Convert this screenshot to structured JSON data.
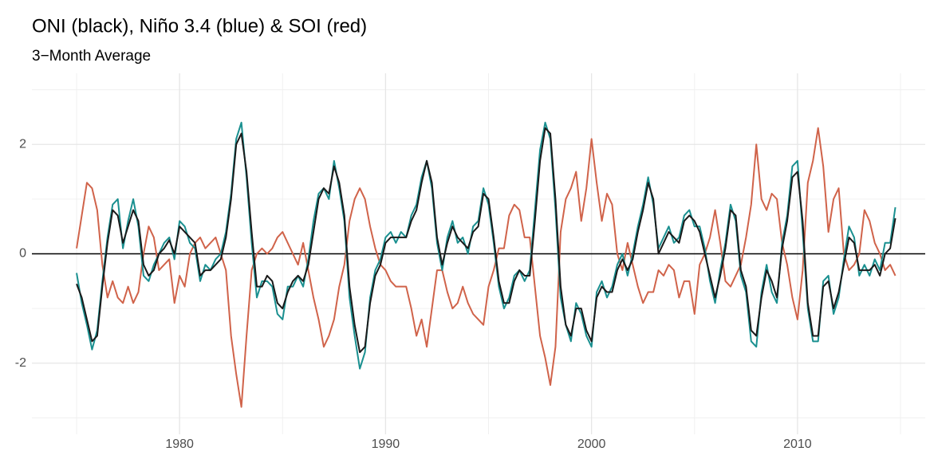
{
  "chart_data": {
    "type": "line",
    "title": "ONI (black), Niño 3.4 (blue) & SOI (red)",
    "subtitle": "3−Month Average",
    "x": [
      1975,
      1975.25,
      1975.5,
      1975.75,
      1976,
      1976.25,
      1976.5,
      1976.75,
      1977,
      1977.25,
      1977.5,
      1977.75,
      1978,
      1978.25,
      1978.5,
      1978.75,
      1979,
      1979.25,
      1979.5,
      1979.75,
      1980,
      1980.25,
      1980.5,
      1980.75,
      1981,
      1981.25,
      1981.5,
      1981.75,
      1982,
      1982.25,
      1982.5,
      1982.75,
      1983,
      1983.25,
      1983.5,
      1983.75,
      1984,
      1984.25,
      1984.5,
      1984.75,
      1985,
      1985.25,
      1985.5,
      1985.75,
      1986,
      1986.25,
      1986.5,
      1986.75,
      1987,
      1987.25,
      1987.5,
      1987.75,
      1988,
      1988.25,
      1988.5,
      1988.75,
      1989,
      1989.25,
      1989.5,
      1989.75,
      1990,
      1990.25,
      1990.5,
      1990.75,
      1991,
      1991.25,
      1991.5,
      1991.75,
      1992,
      1992.25,
      1992.5,
      1992.75,
      1993,
      1993.25,
      1993.5,
      1993.75,
      1994,
      1994.25,
      1994.5,
      1994.75,
      1995,
      1995.25,
      1995.5,
      1995.75,
      1996,
      1996.25,
      1996.5,
      1996.75,
      1997,
      1997.25,
      1997.5,
      1997.75,
      1998,
      1998.25,
      1998.5,
      1998.75,
      1999,
      1999.25,
      1999.5,
      1999.75,
      2000,
      2000.25,
      2000.5,
      2000.75,
      2001,
      2001.25,
      2001.5,
      2001.75,
      2002,
      2002.25,
      2002.5,
      2002.75,
      2003,
      2003.25,
      2003.5,
      2003.75,
      2004,
      2004.25,
      2004.5,
      2004.75,
      2005,
      2005.25,
      2005.5,
      2005.75,
      2006,
      2006.25,
      2006.5,
      2006.75,
      2007,
      2007.25,
      2007.5,
      2007.75,
      2008,
      2008.25,
      2008.5,
      2008.75,
      2009,
      2009.25,
      2009.5,
      2009.75,
      2010,
      2010.25,
      2010.5,
      2010.75,
      2011,
      2011.25,
      2011.5,
      2011.75,
      2012,
      2012.25,
      2012.5,
      2012.75,
      2013,
      2013.25,
      2013.5,
      2013.75,
      2014,
      2014.25,
      2014.5,
      2014.75
    ],
    "series": [
      {
        "name": "SOI",
        "color": "#d0634a",
        "values": [
          0.1,
          0.7,
          1.3,
          1.2,
          0.8,
          -0.2,
          -0.8,
          -0.5,
          -0.8,
          -0.9,
          -0.6,
          -0.9,
          -0.7,
          0.0,
          0.5,
          0.3,
          -0.3,
          -0.2,
          -0.1,
          -0.9,
          -0.4,
          -0.6,
          0.0,
          0.2,
          0.3,
          0.1,
          0.2,
          0.3,
          0.0,
          -0.3,
          -1.5,
          -2.2,
          -2.8,
          -1.5,
          -0.3,
          0.0,
          0.1,
          0.0,
          0.1,
          0.3,
          0.4,
          0.2,
          0.0,
          -0.2,
          0.2,
          -0.3,
          -0.8,
          -1.2,
          -1.7,
          -1.5,
          -1.2,
          -0.6,
          -0.2,
          0.6,
          1.0,
          1.2,
          1.0,
          0.5,
          0.1,
          -0.2,
          -0.3,
          -0.5,
          -0.6,
          -0.6,
          -0.6,
          -1.0,
          -1.5,
          -1.2,
          -1.7,
          -1.0,
          -0.3,
          -0.3,
          -0.7,
          -1.0,
          -0.9,
          -0.6,
          -0.9,
          -1.1,
          -1.2,
          -1.3,
          -0.6,
          -0.3,
          0.1,
          0.1,
          0.7,
          0.9,
          0.8,
          0.3,
          0.3,
          -0.6,
          -1.5,
          -1.9,
          -2.4,
          -1.7,
          0.4,
          1.0,
          1.2,
          1.5,
          0.6,
          1.2,
          2.1,
          1.3,
          0.6,
          1.1,
          0.9,
          0.0,
          -0.3,
          0.2,
          -0.2,
          -0.6,
          -0.9,
          -0.7,
          -0.7,
          -0.3,
          -0.4,
          -0.2,
          -0.3,
          -0.8,
          -0.5,
          -0.5,
          -1.1,
          -0.2,
          0.0,
          0.3,
          0.8,
          0.2,
          -0.5,
          -0.6,
          -0.4,
          -0.2,
          0.3,
          0.9,
          2.0,
          1.0,
          0.8,
          1.1,
          1.0,
          0.2,
          -0.2,
          -0.8,
          -1.2,
          -0.3,
          1.3,
          1.7,
          2.3,
          1.6,
          0.4,
          1.0,
          1.2,
          0.0,
          -0.3,
          -0.2,
          0.0,
          0.8,
          0.6,
          0.2,
          0.0,
          -0.3,
          -0.2,
          -0.4
        ]
      },
      {
        "name": "Niño 3.4",
        "color": "#1a9090",
        "values": [
          -0.35,
          -0.9,
          -1.3,
          -1.75,
          -1.4,
          -0.5,
          0.3,
          0.9,
          1.0,
          0.1,
          0.6,
          1.0,
          0.5,
          -0.4,
          -0.5,
          -0.2,
          0.0,
          0.2,
          0.3,
          -0.1,
          0.6,
          0.5,
          0.2,
          0.1,
          -0.5,
          -0.2,
          -0.3,
          -0.1,
          0.0,
          0.4,
          1.1,
          2.1,
          2.4,
          1.4,
          0.2,
          -0.8,
          -0.5,
          -0.5,
          -0.6,
          -1.1,
          -1.2,
          -0.6,
          -0.6,
          -0.4,
          -0.6,
          -0.1,
          0.6,
          1.1,
          1.2,
          1.0,
          1.7,
          1.2,
          0.6,
          -0.8,
          -1.5,
          -2.1,
          -1.8,
          -0.8,
          -0.3,
          -0.1,
          0.3,
          0.4,
          0.2,
          0.4,
          0.3,
          0.7,
          0.9,
          1.4,
          1.7,
          1.2,
          0.2,
          -0.3,
          0.3,
          0.6,
          0.2,
          0.3,
          0.0,
          0.5,
          0.6,
          1.2,
          0.9,
          0.2,
          -0.6,
          -1.0,
          -0.8,
          -0.4,
          -0.3,
          -0.5,
          -0.3,
          0.8,
          1.9,
          2.4,
          2.1,
          0.8,
          -0.8,
          -1.3,
          -1.6,
          -0.9,
          -1.1,
          -1.5,
          -1.7,
          -0.7,
          -0.5,
          -0.8,
          -0.6,
          -0.2,
          0.0,
          -0.4,
          0.0,
          0.5,
          0.9,
          1.4,
          0.9,
          0.1,
          0.3,
          0.5,
          0.2,
          0.3,
          0.7,
          0.8,
          0.5,
          0.5,
          0.1,
          -0.5,
          -0.9,
          -0.3,
          0.2,
          0.9,
          0.6,
          -0.4,
          -0.7,
          -1.6,
          -1.7,
          -0.7,
          -0.2,
          -0.7,
          -0.9,
          0.2,
          0.7,
          1.6,
          1.7,
          0.4,
          -1.0,
          -1.6,
          -1.6,
          -0.5,
          -0.4,
          -1.1,
          -0.8,
          -0.1,
          0.5,
          0.3,
          -0.4,
          -0.2,
          -0.4,
          -0.1,
          -0.3,
          0.2,
          0.2,
          0.85
        ]
      },
      {
        "name": "ONI",
        "color": "#1a1a1a",
        "values": [
          -0.55,
          -0.8,
          -1.2,
          -1.6,
          -1.5,
          -0.6,
          0.2,
          0.8,
          0.7,
          0.2,
          0.5,
          0.8,
          0.6,
          -0.2,
          -0.4,
          -0.3,
          0.0,
          0.1,
          0.25,
          0.0,
          0.5,
          0.4,
          0.3,
          0.2,
          -0.4,
          -0.3,
          -0.3,
          -0.2,
          -0.1,
          0.3,
          1.0,
          2.0,
          2.2,
          1.5,
          0.4,
          -0.6,
          -0.6,
          -0.4,
          -0.5,
          -0.9,
          -1.0,
          -0.7,
          -0.5,
          -0.4,
          -0.5,
          -0.2,
          0.4,
          1.0,
          1.2,
          1.1,
          1.6,
          1.3,
          0.7,
          -0.6,
          -1.3,
          -1.8,
          -1.7,
          -0.9,
          -0.4,
          -0.2,
          0.2,
          0.3,
          0.3,
          0.3,
          0.3,
          0.6,
          0.8,
          1.3,
          1.7,
          1.3,
          0.3,
          -0.2,
          0.2,
          0.5,
          0.3,
          0.2,
          0.1,
          0.4,
          0.5,
          1.1,
          1.0,
          0.3,
          -0.5,
          -0.9,
          -0.9,
          -0.5,
          -0.3,
          -0.4,
          -0.4,
          0.6,
          1.7,
          2.3,
          2.2,
          1.0,
          -0.6,
          -1.3,
          -1.5,
          -1.0,
          -1.0,
          -1.4,
          -1.6,
          -0.8,
          -0.6,
          -0.7,
          -0.7,
          -0.3,
          -0.1,
          -0.3,
          -0.1,
          0.4,
          0.8,
          1.3,
          1.0,
          0.0,
          0.2,
          0.4,
          0.3,
          0.2,
          0.6,
          0.7,
          0.6,
          0.4,
          0.0,
          -0.4,
          -0.8,
          -0.4,
          0.1,
          0.8,
          0.7,
          -0.3,
          -0.6,
          -1.4,
          -1.5,
          -0.8,
          -0.3,
          -0.5,
          -0.8,
          0.1,
          0.6,
          1.4,
          1.5,
          0.6,
          -0.9,
          -1.5,
          -1.5,
          -0.6,
          -0.5,
          -1.0,
          -0.7,
          -0.2,
          0.3,
          0.2,
          -0.3,
          -0.3,
          -0.3,
          -0.2,
          -0.4,
          0.0,
          0.1,
          0.65
        ]
      }
    ],
    "hline": 0,
    "xlim": [
      1972.83,
      2016.2
    ],
    "ylim": [
      -3.3,
      3.3
    ],
    "xticks": [
      1980,
      1990,
      2000,
      2010
    ],
    "yticks": [
      -2,
      0,
      2
    ],
    "xminor": [
      1975,
      1985,
      1995,
      2005,
      2015
    ],
    "yminor": [
      -3,
      -1,
      1,
      3
    ],
    "grid": true
  }
}
